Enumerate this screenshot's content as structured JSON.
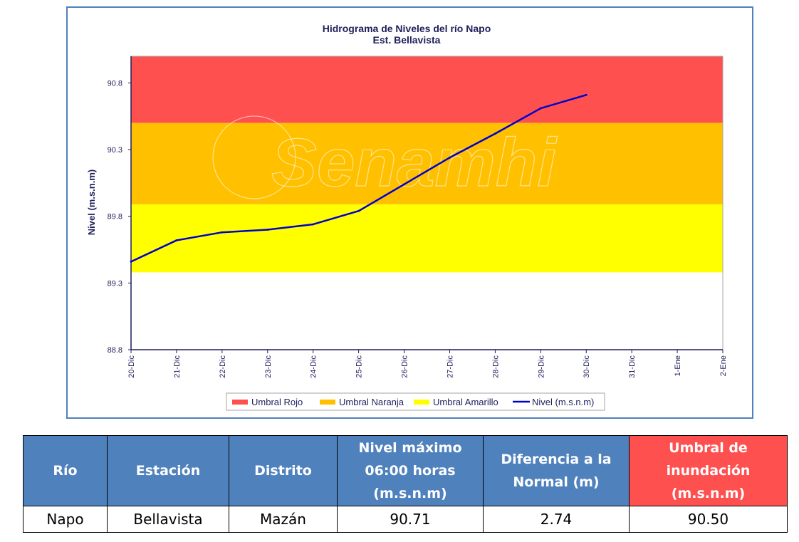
{
  "chart_data": {
    "type": "line",
    "title": "Hidrograma de Niveles del río Napo",
    "subtitle": "Est. Bellavista",
    "ylabel": "Nivel (m.s.n.m)",
    "xlabel": "",
    "ylim": [
      88.8,
      91.0
    ],
    "yticks": [
      "88.8",
      "89.3",
      "89.8",
      "90.3",
      "90.8"
    ],
    "categories": [
      "20-Dic",
      "21-Dic",
      "22-Dic",
      "23-Dic",
      "24-Dic",
      "25-Dic",
      "26-Dic",
      "27-Dic",
      "28-Dic",
      "29-Dic",
      "30-Dic",
      "31-Dic",
      "1-Ene",
      "2-Ene"
    ],
    "bands": [
      {
        "name": "Umbral Rojo",
        "from": 90.5,
        "to": 91.0,
        "color": "#ff5050"
      },
      {
        "name": "Umbral Naranja",
        "from": 89.89,
        "to": 90.5,
        "color": "#ffc000"
      },
      {
        "name": "Umbral Amarillo",
        "from": 89.38,
        "to": 89.89,
        "color": "#ffff00"
      }
    ],
    "series": [
      {
        "name": "Nivel (m.s.n.m)",
        "color": "#0000cc",
        "values": [
          89.46,
          89.62,
          89.68,
          89.7,
          89.74,
          89.84,
          90.04,
          90.24,
          90.42,
          90.61,
          90.71,
          null,
          null,
          null
        ]
      }
    ],
    "legend_position": "bottom",
    "watermark": "Senamhi"
  },
  "table": {
    "headers": [
      "Río",
      "Estación",
      "Distrito",
      "Nivel máximo 06:00 horas (m.s.n.m)",
      "Diferencia a la Normal (m)",
      "Umbral de inundación (m.s.n.m)"
    ],
    "row": [
      "Napo",
      "Bellavista",
      "Mazán",
      "90.71",
      "2.74",
      "90.50"
    ],
    "header_color": "#4f81bd",
    "umbral_header_color": "#ff5050"
  }
}
